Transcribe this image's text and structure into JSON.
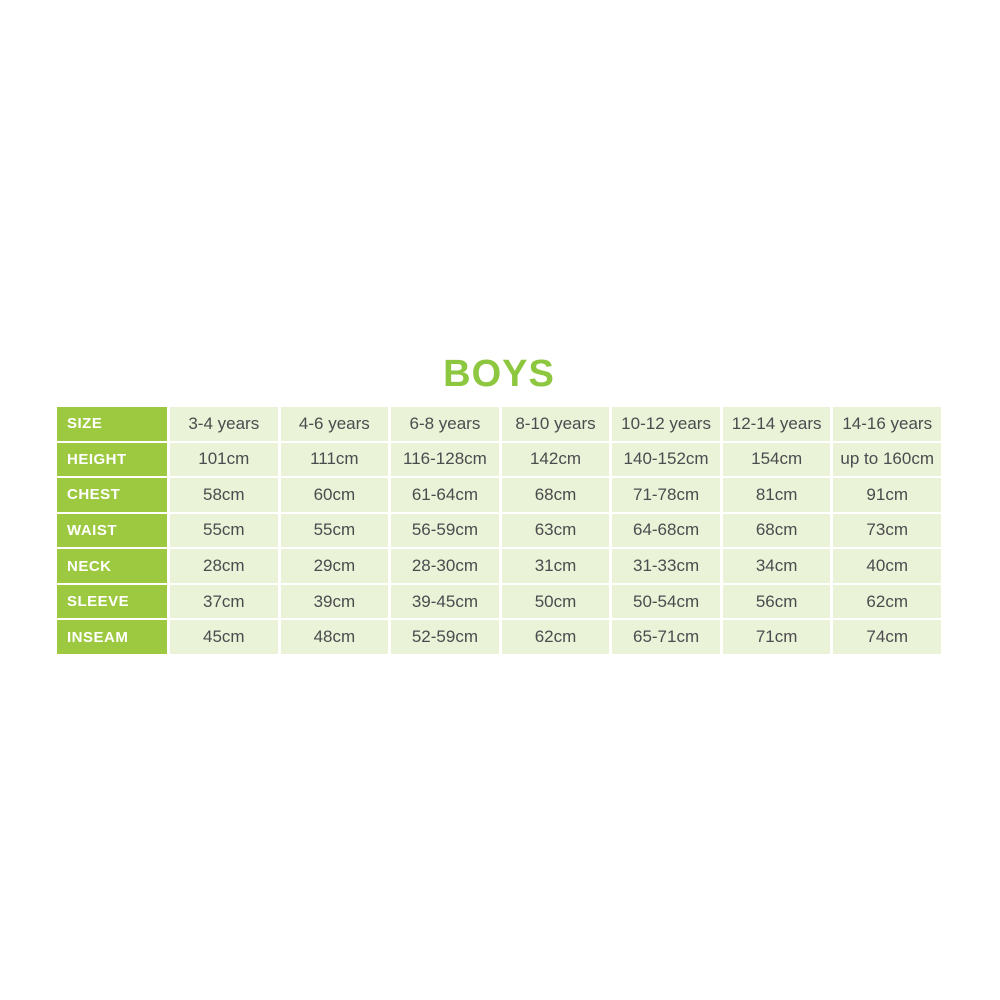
{
  "title": "BOYS",
  "colors": {
    "title": "#8DC63F",
    "row_label_bg": "#9DC940",
    "row_label_text": "#FFFFFF",
    "cell_bg": "#EAF2D8",
    "cell_text": "#4B4C4E"
  },
  "chart_data": {
    "type": "table",
    "title": "BOYS",
    "columns": [
      "SIZE",
      "3-4 years",
      "4-6 years",
      "6-8 years",
      "8-10 years",
      "10-12 years",
      "12-14 years",
      "14-16 years"
    ],
    "rows": [
      {
        "label": "HEIGHT",
        "values": [
          "101cm",
          "111cm",
          "116-128cm",
          "142cm",
          "140-152cm",
          "154cm",
          "up to 160cm"
        ]
      },
      {
        "label": "CHEST",
        "values": [
          "58cm",
          "60cm",
          "61-64cm",
          "68cm",
          "71-78cm",
          "81cm",
          "91cm"
        ]
      },
      {
        "label": "WAIST",
        "values": [
          "55cm",
          "55cm",
          "56-59cm",
          "63cm",
          "64-68cm",
          "68cm",
          "73cm"
        ]
      },
      {
        "label": "NECK",
        "values": [
          "28cm",
          "29cm",
          "28-30cm",
          "31cm",
          "31-33cm",
          "34cm",
          "40cm"
        ]
      },
      {
        "label": "SLEEVE",
        "values": [
          "37cm",
          "39cm",
          "39-45cm",
          "50cm",
          "50-54cm",
          "56cm",
          "62cm"
        ]
      },
      {
        "label": "INSEAM",
        "values": [
          "45cm",
          "48cm",
          "52-59cm",
          "62cm",
          "65-71cm",
          "71cm",
          "74cm"
        ]
      }
    ]
  }
}
